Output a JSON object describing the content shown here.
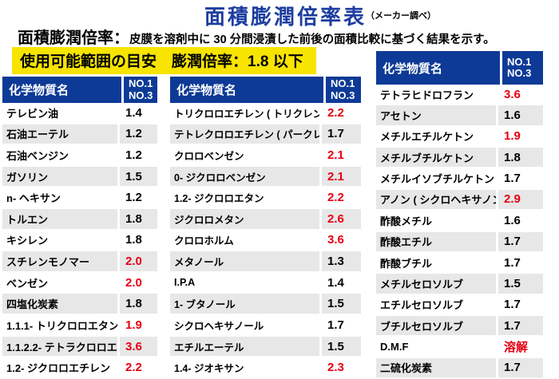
{
  "title": {
    "text": "面積膨潤倍率表",
    "note": "（メーカー調べ）"
  },
  "definition": {
    "label": "面積膨潤倍率：",
    "text": "皮膜を溶剤中に 30 分間浸漬した前後の面積比較に基づく結果を示す。"
  },
  "banner": {
    "text": "使用可能範囲の目安　膨潤倍率：1.8 以下"
  },
  "colors": {
    "header_blue": "#0d3a96",
    "title_blue": "#1c3da0",
    "banner_yellow": "#f7e400",
    "alert_red": "#e60012",
    "row_stripe_gray": "#e7e7e7"
  },
  "table": {
    "name_header": "化学物質名",
    "ratio_header": [
      "NO.1",
      "NO.3"
    ],
    "columns": [
      {
        "rows": [
          {
            "name": "テレビン油",
            "value": "1.4",
            "red": false
          },
          {
            "name": "石油エーテル",
            "value": "1.2",
            "red": false
          },
          {
            "name": "石油ベンジン",
            "value": "1.2",
            "red": false
          },
          {
            "name": "ガソリン",
            "value": "1.5",
            "red": false
          },
          {
            "name": "n- ヘキサン",
            "value": "1.2",
            "red": false
          },
          {
            "name": "トルエン",
            "value": "1.8",
            "red": false
          },
          {
            "name": "キシレン",
            "value": "1.8",
            "red": false
          },
          {
            "name": "スチレンモノマー",
            "value": "2.0",
            "red": true
          },
          {
            "name": "ベンゼン",
            "value": "2.0",
            "red": true
          },
          {
            "name": "四塩化炭素",
            "value": "1.8",
            "red": false
          },
          {
            "name": "1.1.1- トリクロロエタン",
            "value": "1.9",
            "red": true
          },
          {
            "name": "1.1.2.2- テトラクロロエタン",
            "value": "3.6",
            "red": true
          },
          {
            "name": "1.2- ジクロロエチレン",
            "value": "2.2",
            "red": true
          }
        ]
      },
      {
        "rows": [
          {
            "name": "トリクロロエチレン ( トリクレン )",
            "value": "2.2",
            "red": true
          },
          {
            "name": "テトレクロロエチレン ( パークレン )",
            "value": "1.7",
            "red": false
          },
          {
            "name": "クロロベンゼン",
            "value": "2.1",
            "red": true
          },
          {
            "name": "0- ジクロロベンゼン",
            "value": "2.1",
            "red": true
          },
          {
            "name": "1.2- ジクロロエタン",
            "value": "2.2",
            "red": true
          },
          {
            "name": "ジクロロメタン",
            "value": "2.6",
            "red": true
          },
          {
            "name": "クロロホルム",
            "value": "3.6",
            "red": true
          },
          {
            "name": "メタノール",
            "value": "1.3",
            "red": false
          },
          {
            "name": "I.P.A",
            "value": "1.4",
            "red": false
          },
          {
            "name": "1- ブタノール",
            "value": "1.5",
            "red": false
          },
          {
            "name": "シクロヘキサノール",
            "value": "1.7",
            "red": false
          },
          {
            "name": "エチルエーテル",
            "value": "1.5",
            "red": false
          },
          {
            "name": "1.4- ジオキサン",
            "value": "2.3",
            "red": true
          }
        ]
      },
      {
        "rows": [
          {
            "name": "テトラヒドロフラン",
            "value": "3.6",
            "red": true
          },
          {
            "name": "アセトン",
            "value": "1.6",
            "red": false
          },
          {
            "name": "メチルエチルケトン",
            "value": "1.9",
            "red": true
          },
          {
            "name": "メチルブチルケトン",
            "value": "1.8",
            "red": false
          },
          {
            "name": "メチルイソブチルケトン",
            "value": "1.7",
            "red": false
          },
          {
            "name": "アノン ( シクロヘキサノン )",
            "value": "2.9",
            "red": true
          },
          {
            "name": "酢酸メチル",
            "value": "1.6",
            "red": false
          },
          {
            "name": "酢酸エチル",
            "value": "1.7",
            "red": false
          },
          {
            "name": "酢酸ブチル",
            "value": "1.7",
            "red": false
          },
          {
            "name": "メチルセロソルブ",
            "value": "1.5",
            "red": false
          },
          {
            "name": "エチルセロソルブ",
            "value": "1.7",
            "red": false
          },
          {
            "name": "ブチルセロソルブ",
            "value": "1.7",
            "red": false
          },
          {
            "name": "D.M.F",
            "value": "溶解",
            "red": true
          },
          {
            "name": "二硫化炭素",
            "value": "1.7",
            "red": false
          }
        ]
      }
    ]
  }
}
